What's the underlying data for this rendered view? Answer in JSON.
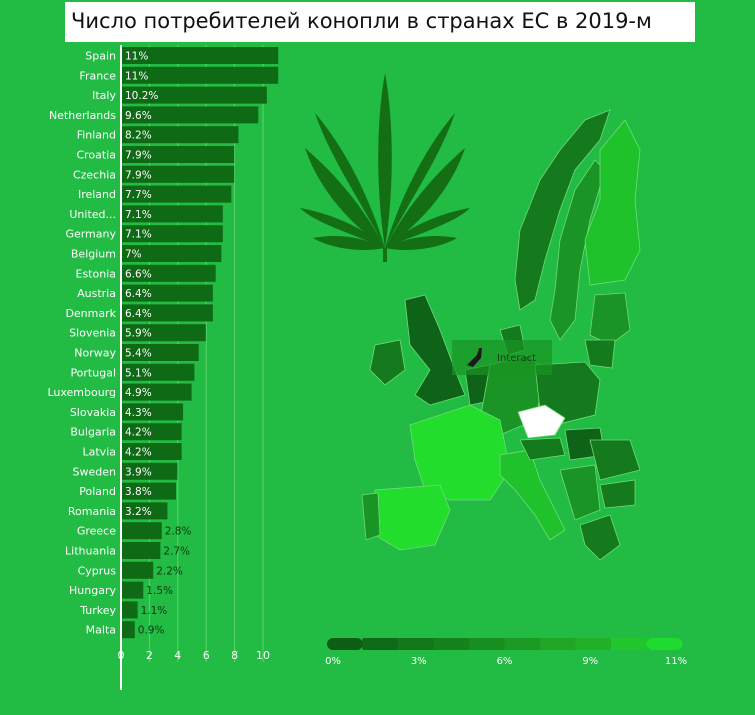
{
  "title": "Число потребителей конопли в странах ЕС в 2019-м",
  "chart_data": {
    "type": "bar",
    "orientation": "horizontal",
    "categories": [
      "Spain",
      "France",
      "Italy",
      "Netherlands",
      "Finland",
      "Croatia",
      "Czechia",
      "Ireland",
      "United...",
      "Germany",
      "Belgium",
      "Estonia",
      "Austria",
      "Denmark",
      "Slovenia",
      "Norway",
      "Portugal",
      "Luxembourg",
      "Slovakia",
      "Bulgaria",
      "Latvia",
      "Sweden",
      "Poland",
      "Romania",
      "Greece",
      "Lithuania",
      "Cyprus",
      "Hungary",
      "Turkey",
      "Malta"
    ],
    "values": [
      11,
      11,
      10.2,
      9.6,
      8.2,
      7.9,
      7.9,
      7.7,
      7.1,
      7.1,
      7,
      6.6,
      6.4,
      6.4,
      5.9,
      5.4,
      5.1,
      4.9,
      4.3,
      4.2,
      4.2,
      3.9,
      3.8,
      3.2,
      2.8,
      2.7,
      2.2,
      1.5,
      1.1,
      0.9
    ],
    "value_labels": [
      "11%",
      "11%",
      "10.2%",
      "9.6%",
      "8.2%",
      "7.9%",
      "7.9%",
      "7.7%",
      "7.1%",
      "7.1%",
      "7%",
      "6.6%",
      "6.4%",
      "6.4%",
      "5.9%",
      "5.4%",
      "5.1%",
      "4.9%",
      "4.3%",
      "4.2%",
      "4.2%",
      "3.9%",
      "3.8%",
      "3.2%",
      "2.8%",
      "2.7%",
      "2.2%",
      "1.5%",
      "1.1%",
      "0.9%"
    ],
    "xticks": [
      "0",
      "2",
      "4",
      "6",
      "8",
      "10"
    ],
    "xlim": [
      0,
      11
    ],
    "grid": true,
    "color_scale": {
      "labels": [
        "0%",
        "3%",
        "6%",
        "9%",
        "11%"
      ],
      "colors": [
        "#0d5e14",
        "#106a17",
        "#13761a",
        "#16821d",
        "#198e20",
        "#1c9a23",
        "#1fa626",
        "#22b229",
        "#1fc62c",
        "#1ddb2f"
      ]
    }
  },
  "map": {
    "interact_label": "Interact",
    "colors": {
      "dark": "#0f6318",
      "mid_dark": "#147a1d",
      "mid": "#1a9424",
      "light": "#20b02a",
      "bright": "#22dd2c",
      "highlight": "#ffffff",
      "leaf": "#146f14"
    }
  },
  "icons": {
    "leaf": "cannabis-leaf-icon",
    "hand": "hand-pointer-icon"
  }
}
